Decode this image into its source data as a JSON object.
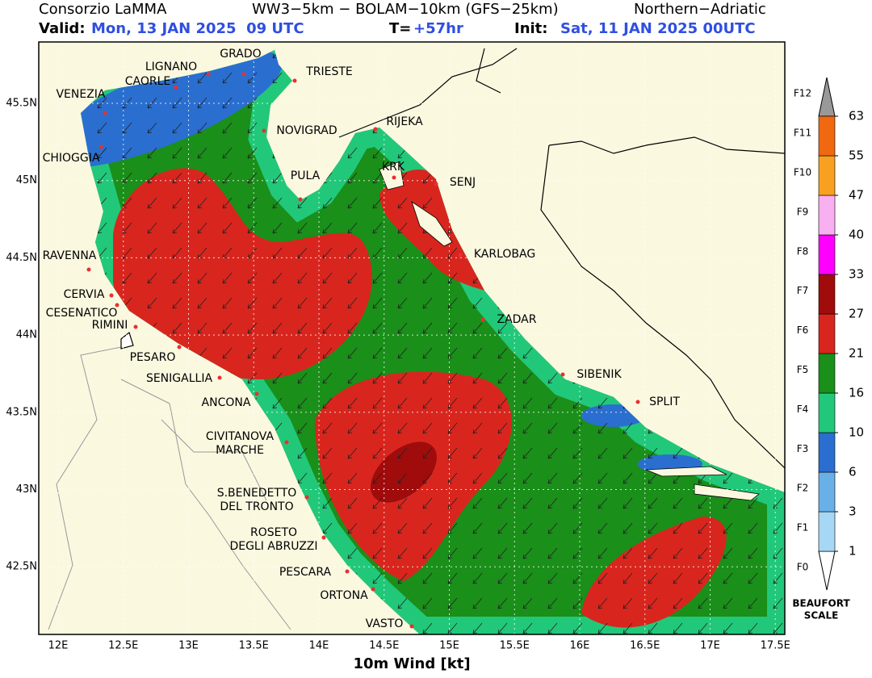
{
  "header": {
    "source": "Consorzio LaMMA",
    "model": "WW3−5km − BOLAM−10km (GFS−25km)",
    "region": "Northern−Adriatic",
    "valid_label": "Valid:",
    "valid": "Mon, 13 JAN 2025  09 UTC",
    "t_label": "T=",
    "t_value": "+57hr",
    "init_label": "Init:",
    "init": "Sat, 11 JAN 2025 00UTC"
  },
  "map": {
    "lat_ticks": [
      "45.5N",
      "45N",
      "44.5N",
      "44N",
      "43.5N",
      "43N",
      "42.5N"
    ],
    "lon_ticks": [
      "12E",
      "12.5E",
      "13E",
      "13.5E",
      "14E",
      "14.5E",
      "15E",
      "15.5E",
      "16E",
      "16.5E",
      "17E",
      "17.5E"
    ],
    "cities": [
      {
        "name": [
          "GRADO"
        ]
      },
      {
        "name": [
          "LIGNANO"
        ]
      },
      {
        "name": [
          "TRIESTE"
        ]
      },
      {
        "name": [
          "CAORLE"
        ]
      },
      {
        "name": [
          "VENEZIA"
        ]
      },
      {
        "name": [
          "NOVIGRAD"
        ]
      },
      {
        "name": [
          "RIJEKA"
        ]
      },
      {
        "name": [
          "CHIOGGIA"
        ]
      },
      {
        "name": [
          "KRK"
        ]
      },
      {
        "name": [
          "SENJ"
        ]
      },
      {
        "name": [
          "PULA"
        ]
      },
      {
        "name": [
          "RAVENNA"
        ]
      },
      {
        "name": [
          "KARLOBAG"
        ]
      },
      {
        "name": [
          "CERVIA"
        ]
      },
      {
        "name": [
          "CESENATICO"
        ]
      },
      {
        "name": [
          "ZADAR"
        ]
      },
      {
        "name": [
          "RIMINI"
        ]
      },
      {
        "name": [
          "PESARO"
        ]
      },
      {
        "name": [
          "SENIGALLIA"
        ]
      },
      {
        "name": [
          "SIBENIK"
        ]
      },
      {
        "name": [
          "ANCONA"
        ]
      },
      {
        "name": [
          "SPLIT"
        ]
      },
      {
        "name": [
          "CIVITANOVA",
          "MARCHE"
        ]
      },
      {
        "name": [
          "S.BENEDETTO",
          "DEL TRONTO"
        ]
      },
      {
        "name": [
          "ROSETO",
          "DEGLI ABRUZZI"
        ]
      },
      {
        "name": [
          "PESCARA"
        ]
      },
      {
        "name": [
          "ORTONA"
        ]
      },
      {
        "name": [
          "VASTO"
        ]
      }
    ],
    "x_label": "10m Wind [kt]"
  },
  "colorbar": {
    "levels": [
      1,
      3,
      6,
      10,
      16,
      21,
      27,
      33,
      40,
      47,
      55,
      63
    ],
    "colors": [
      "#a6d8f5",
      "#6ab0e8",
      "#2a6fd0",
      "#22c87a",
      "#1a8f1a",
      "#d8261e",
      "#a00c0c",
      "#ff00ff",
      "#f8b0f0",
      "#f8a020",
      "#f06810"
    ],
    "under_color": "#ffffff",
    "over_color": "#999999",
    "beaufort": [
      "F0",
      "F1",
      "F2",
      "F3",
      "F4",
      "F5",
      "F6",
      "F7",
      "F8",
      "F9",
      "F10",
      "F11",
      "F12"
    ],
    "scale_title": [
      "BEAUFORT",
      "SCALE"
    ]
  }
}
